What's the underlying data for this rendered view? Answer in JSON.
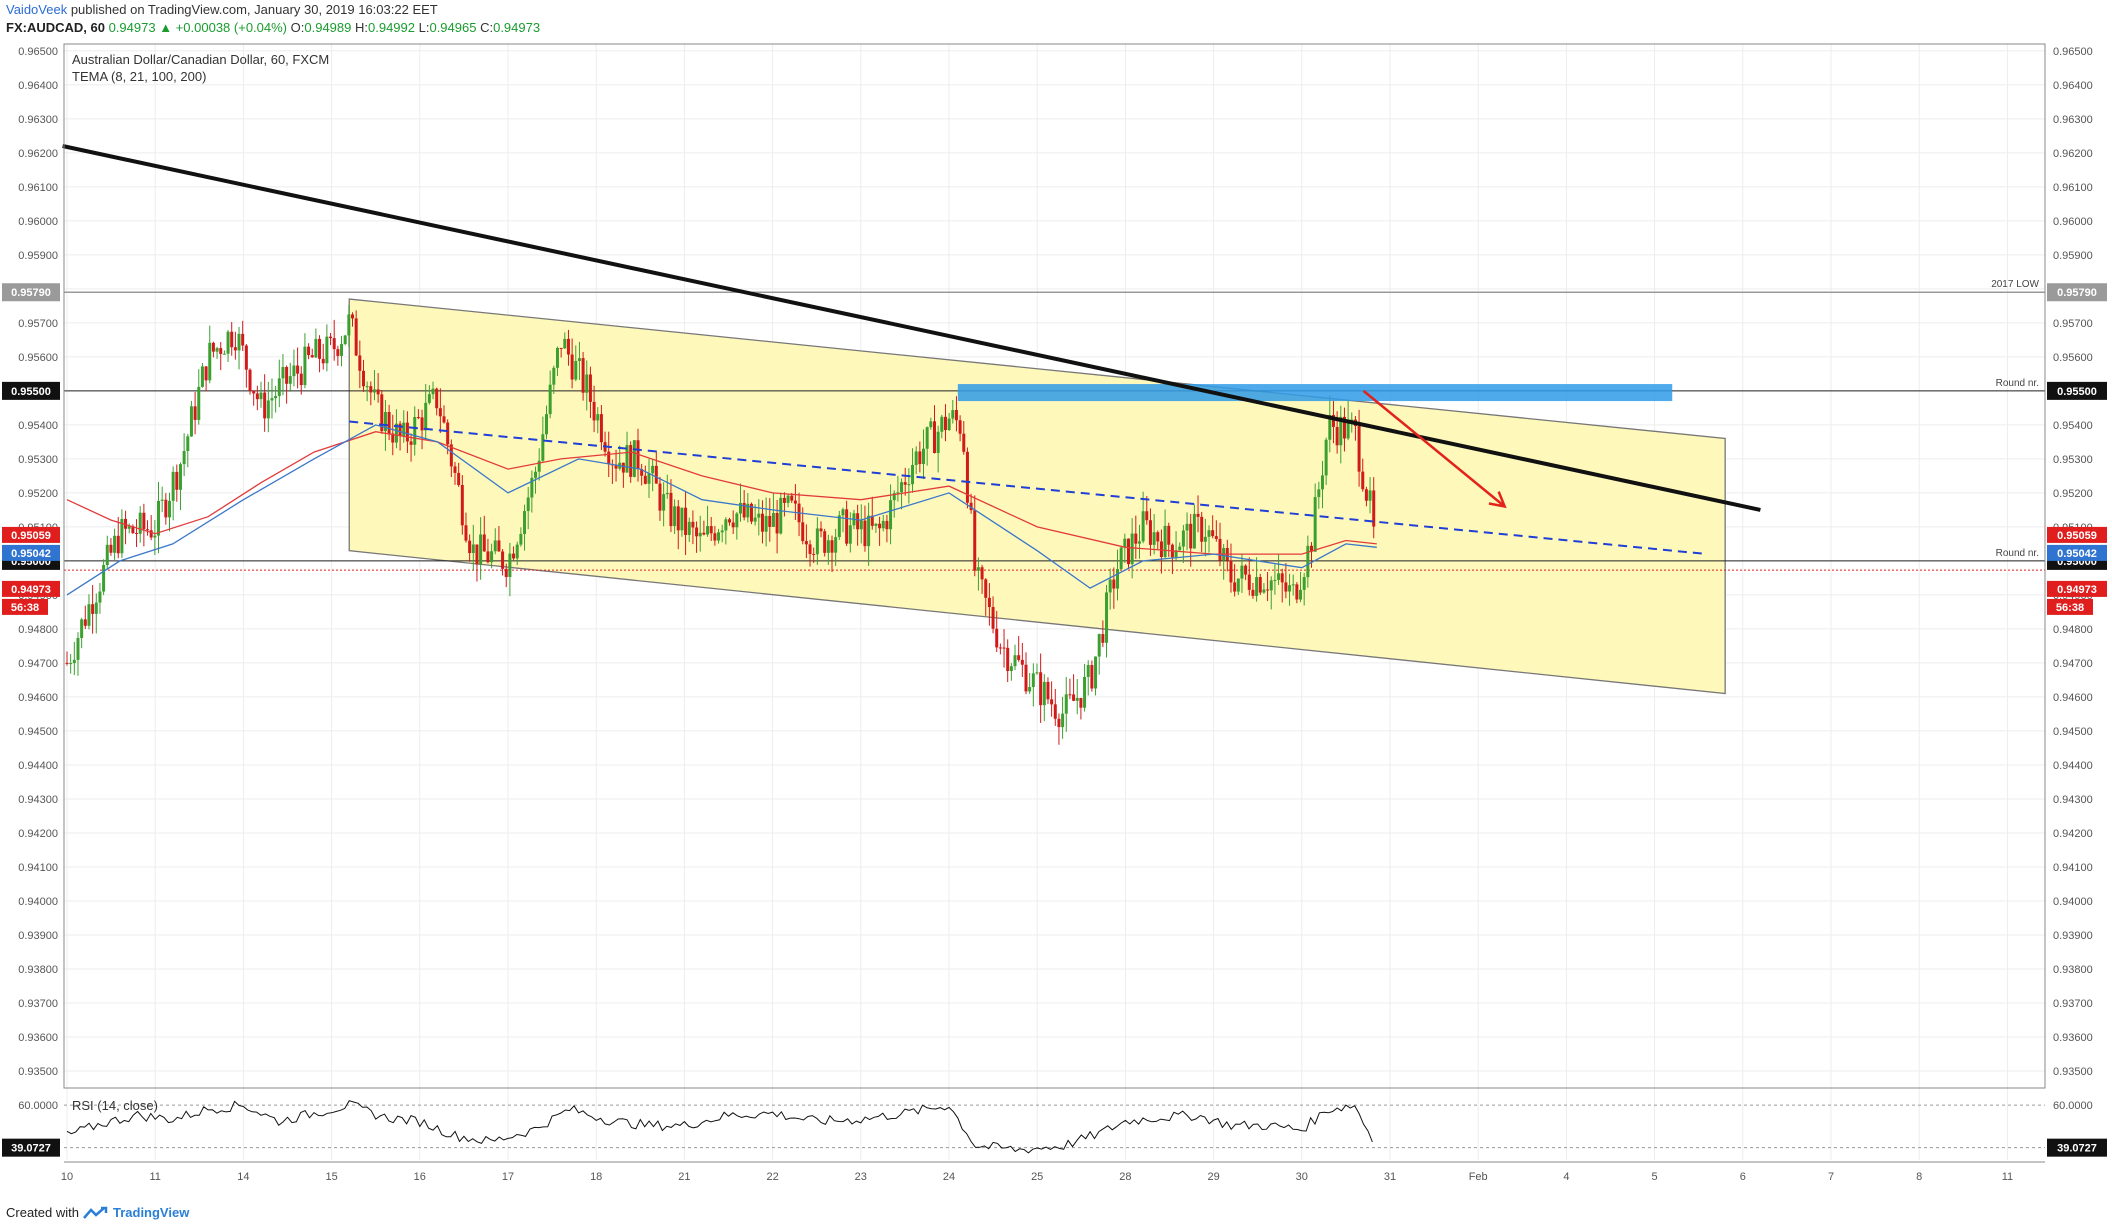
{
  "header": {
    "author": "VaidoVeek",
    "published": "published on TradingView.com, January 30, 2019 16:03:22 EET",
    "symbol": "FX:AUDCAD, 60",
    "price": "0.94973",
    "change": "▲ +0.00038 (+0.04%)",
    "open_label": "O:",
    "open": "0.94989",
    "high_label": "H:",
    "high": "0.94992",
    "low_label": "L:",
    "low": "0.94965",
    "close_label": "C:",
    "close": "0.94973"
  },
  "legend": {
    "instrument": "Australian Dollar/Canadian Dollar, 60, FXCM",
    "indicator": "TEMA (8, 21, 100, 200)",
    "rsi": "RSI (14, close)"
  },
  "footer": {
    "created": "Created with",
    "brand": "TradingView"
  },
  "colors": {
    "up": "#3ba02f",
    "down": "#d11a1a",
    "channel_fill": "#fff8bb",
    "zone": "#2f9be8",
    "tema_red": "#e23b3b",
    "tema_blue": "#3a78c9",
    "trend_dashed": "#1f3fd6",
    "arrow": "#e3221b"
  },
  "chart_data": {
    "type": "candlestick",
    "title": "Australian Dollar/Canadian Dollar, 60, FXCM",
    "y_range": [
      0.9345,
      0.9652
    ],
    "y_ticks": [
      "0.93500",
      "0.93600",
      "0.93700",
      "0.93800",
      "0.93900",
      "0.94000",
      "0.94100",
      "0.94200",
      "0.94300",
      "0.94400",
      "0.94500",
      "0.94600",
      "0.94700",
      "0.94800",
      "0.94900",
      "0.95000",
      "0.95100",
      "0.95200",
      "0.95300",
      "0.95400",
      "0.95500",
      "0.95600",
      "0.95700",
      "0.95800",
      "0.95900",
      "0.96000",
      "0.96100",
      "0.96200",
      "0.96300",
      "0.96400",
      "0.96500"
    ],
    "x_ticks": [
      "10",
      "11",
      "14",
      "15",
      "16",
      "17",
      "18",
      "21",
      "22",
      "23",
      "24",
      "25",
      "28",
      "29",
      "30",
      "31",
      "Feb",
      "4",
      "5",
      "6",
      "7",
      "8",
      "11"
    ],
    "price_path": [
      [
        0,
        0.947
      ],
      [
        0.3,
        0.949
      ],
      [
        0.6,
        0.9508
      ],
      [
        1.0,
        0.951
      ],
      [
        1.3,
        0.953
      ],
      [
        1.6,
        0.956
      ],
      [
        1.9,
        0.9568
      ],
      [
        2.2,
        0.9545
      ],
      [
        2.5,
        0.9553
      ],
      [
        2.8,
        0.956
      ],
      [
        3.0,
        0.9562
      ],
      [
        3.2,
        0.957
      ],
      [
        3.5,
        0.9545
      ],
      [
        3.8,
        0.9535
      ],
      [
        4.2,
        0.9548
      ],
      [
        4.4,
        0.9525
      ],
      [
        4.6,
        0.9503
      ],
      [
        5.0,
        0.95
      ],
      [
        5.3,
        0.9525
      ],
      [
        5.6,
        0.9565
      ],
      [
        5.9,
        0.955
      ],
      [
        6.2,
        0.953
      ],
      [
        6.5,
        0.953
      ],
      [
        6.8,
        0.9515
      ],
      [
        7.2,
        0.9505
      ],
      [
        7.5,
        0.9515
      ],
      [
        7.9,
        0.951
      ],
      [
        8.2,
        0.9515
      ],
      [
        8.5,
        0.9505
      ],
      [
        8.8,
        0.951
      ],
      [
        9.2,
        0.9508
      ],
      [
        9.6,
        0.953
      ],
      [
        10.0,
        0.9542
      ],
      [
        10.15,
        0.954
      ],
      [
        10.3,
        0.9495
      ],
      [
        10.6,
        0.9475
      ],
      [
        11.0,
        0.9463
      ],
      [
        11.3,
        0.9455
      ],
      [
        11.6,
        0.9465
      ],
      [
        11.9,
        0.9498
      ],
      [
        12.2,
        0.951
      ],
      [
        12.5,
        0.9505
      ],
      [
        12.9,
        0.951
      ],
      [
        13.2,
        0.9495
      ],
      [
        13.6,
        0.9495
      ],
      [
        13.9,
        0.949
      ],
      [
        14.1,
        0.9505
      ],
      [
        14.3,
        0.954
      ],
      [
        14.6,
        0.9538
      ],
      [
        14.8,
        0.9512
      ],
      [
        14.85,
        0.9497
      ]
    ],
    "tema_red": [
      [
        0,
        0.9518
      ],
      [
        0.5,
        0.9512
      ],
      [
        1.0,
        0.9508
      ],
      [
        1.6,
        0.9513
      ],
      [
        2.2,
        0.9523
      ],
      [
        2.8,
        0.9532
      ],
      [
        3.5,
        0.9538
      ],
      [
        4.2,
        0.9535
      ],
      [
        5.0,
        0.9527
      ],
      [
        5.6,
        0.953
      ],
      [
        6.4,
        0.9532
      ],
      [
        7.2,
        0.9525
      ],
      [
        8.0,
        0.952
      ],
      [
        9.0,
        0.9518
      ],
      [
        10.0,
        0.9522
      ],
      [
        11.0,
        0.951
      ],
      [
        12.0,
        0.9504
      ],
      [
        13.0,
        0.9502
      ],
      [
        14.0,
        0.9502
      ],
      [
        14.5,
        0.9506
      ],
      [
        14.85,
        0.9505
      ]
    ],
    "tema_blue": [
      [
        0,
        0.949
      ],
      [
        0.6,
        0.95
      ],
      [
        1.2,
        0.9505
      ],
      [
        2.0,
        0.9518
      ],
      [
        2.8,
        0.953
      ],
      [
        3.5,
        0.954
      ],
      [
        4.2,
        0.9535
      ],
      [
        5.0,
        0.952
      ],
      [
        5.8,
        0.953
      ],
      [
        6.5,
        0.9527
      ],
      [
        7.2,
        0.9518
      ],
      [
        8.0,
        0.9515
      ],
      [
        9.0,
        0.9512
      ],
      [
        10.0,
        0.952
      ],
      [
        11.0,
        0.9503
      ],
      [
        11.6,
        0.9492
      ],
      [
        12.2,
        0.95
      ],
      [
        13.0,
        0.9502
      ],
      [
        14.0,
        0.9498
      ],
      [
        14.5,
        0.9505
      ],
      [
        14.85,
        0.9504
      ]
    ],
    "trendline": [
      [
        -0.05,
        0.9622
      ],
      [
        19.2,
        0.9515
      ]
    ],
    "dashed_trend": [
      [
        3.2,
        0.9541
      ],
      [
        18.6,
        0.9502
      ]
    ],
    "channel": {
      "x": [
        3.2,
        18.8
      ],
      "upper": [
        0.9577,
        0.9536
      ],
      "lower": [
        0.9503,
        0.9461
      ]
    },
    "zone": {
      "x": [
        10.1,
        18.2
      ],
      "y": [
        0.9547,
        0.9552
      ]
    },
    "arrow": [
      [
        14.7,
        0.955
      ],
      [
        16.3,
        0.9516
      ]
    ],
    "levels": [
      {
        "value": 0.9579,
        "label": "2017 LOW",
        "tag": "0.95790"
      },
      {
        "value": 0.955,
        "label": "Round nr.",
        "tag": "0.95500"
      },
      {
        "value": 0.95,
        "label": "Round nr.",
        "tag": "0.95000"
      }
    ],
    "price_tags": [
      {
        "value": 0.95059,
        "text": "0.95059",
        "color": "#e01e1e"
      },
      {
        "value": 0.95042,
        "text": "0.95042",
        "color": "#2f74d0"
      },
      {
        "value": 0.95,
        "text": "0.95000",
        "color": "#111111"
      },
      {
        "value": 0.94973,
        "text": "0.94973",
        "color": "#e01e1e"
      }
    ],
    "countdown": "56:38",
    "current_price": 0.94973,
    "rsi": {
      "levels": [
        60.0,
        39.0727
      ],
      "level_texts": [
        "60.0000",
        "39.0727"
      ],
      "path": [
        [
          0,
          45
        ],
        [
          0.4,
          51
        ],
        [
          0.8,
          55
        ],
        [
          1.2,
          53
        ],
        [
          1.6,
          58
        ],
        [
          2.0,
          60
        ],
        [
          2.4,
          52
        ],
        [
          2.8,
          56
        ],
        [
          3.2,
          60
        ],
        [
          3.6,
          54
        ],
        [
          4.0,
          52
        ],
        [
          4.4,
          45
        ],
        [
          4.8,
          42
        ],
        [
          5.3,
          48
        ],
        [
          5.7,
          58
        ],
        [
          6.2,
          52
        ],
        [
          6.6,
          50
        ],
        [
          7.0,
          50
        ],
        [
          7.5,
          55
        ],
        [
          8.0,
          56
        ],
        [
          8.5,
          52
        ],
        [
          9.0,
          53
        ],
        [
          9.5,
          56
        ],
        [
          10.0,
          60
        ],
        [
          10.3,
          40
        ],
        [
          10.8,
          38
        ],
        [
          11.3,
          40
        ],
        [
          11.7,
          46
        ],
        [
          12.0,
          52
        ],
        [
          12.4,
          54
        ],
        [
          12.8,
          55
        ],
        [
          13.2,
          50
        ],
        [
          13.6,
          50
        ],
        [
          14.0,
          48
        ],
        [
          14.3,
          58
        ],
        [
          14.6,
          60
        ],
        [
          14.85,
          39
        ]
      ]
    }
  }
}
